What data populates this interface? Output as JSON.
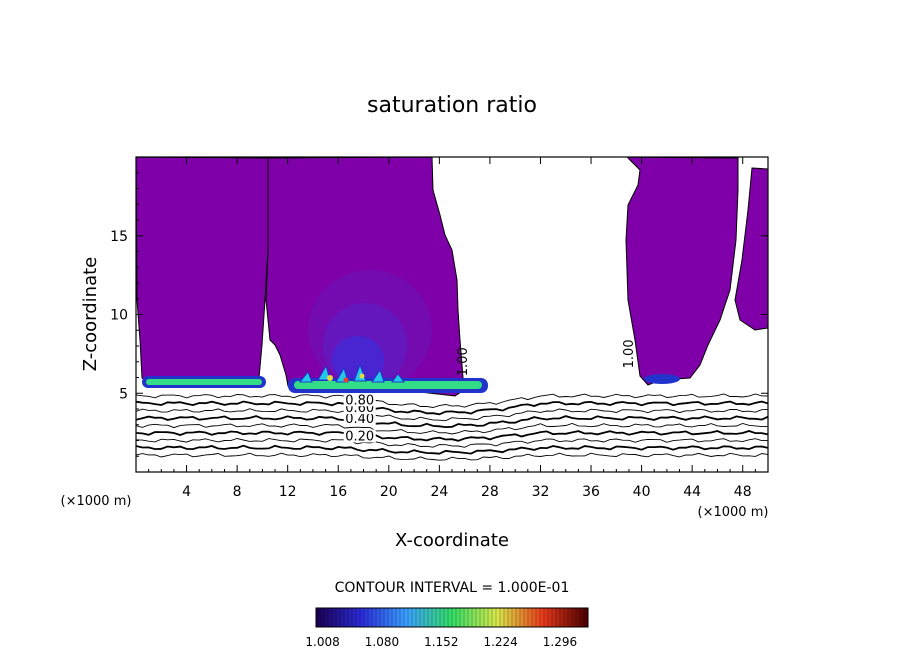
{
  "chart_data": {
    "type": "heatmap",
    "title": "saturation ratio",
    "xlabel": "X-coordinate",
    "ylabel": "Z-coordinate",
    "x_unit": "(×1000 m)",
    "y_unit": "(×1000 m)",
    "xlim": [
      0,
      50
    ],
    "ylim": [
      0,
      20
    ],
    "x_ticks": [
      4,
      8,
      12,
      16,
      20,
      24,
      28,
      32,
      36,
      40,
      44,
      48
    ],
    "y_ticks": [
      5,
      10,
      15
    ],
    "contour_interval_text": "CONTOUR INTERVAL = 1.000E-01",
    "contour_labels": [
      {
        "text": "0.20",
        "x": 17.7,
        "y": 2.0
      },
      {
        "text": "0.40",
        "x": 17.7,
        "y": 3.1
      },
      {
        "text": "0.60",
        "x": 17.7,
        "y": 3.8
      },
      {
        "text": "0.80",
        "x": 17.7,
        "y": 4.3
      },
      {
        "text": "1.00",
        "x": 26.2,
        "y": 7.0
      },
      {
        "text": "1.00",
        "x": 39.3,
        "y": 7.5
      }
    ],
    "colorbar": {
      "min": 1.0,
      "max": 1.33,
      "tick_labels": [
        "1.008",
        "1.080",
        "1.152",
        "1.224",
        "1.296"
      ],
      "colors": [
        "#1a0050",
        "#2b2bd8",
        "#3aa0ff",
        "#33dd66",
        "#d8e84a",
        "#e83a1a",
        "#4a0000"
      ]
    },
    "fill_color": "#7f00a8",
    "fill_label_threshold": "1.00",
    "saturated_regions": [
      {
        "name": "left-anvil",
        "x": [
          0,
          10.5
        ],
        "z": [
          5.2,
          19.8
        ]
      },
      {
        "name": "central-cloud",
        "x": [
          12,
          26.8
        ],
        "z": [
          5.1,
          19.8
        ]
      },
      {
        "name": "right-cloud",
        "x": [
          38,
          48.5
        ],
        "z": [
          5.7,
          19.8
        ]
      }
    ],
    "contour_levels": [
      0.1,
      0.2,
      0.3,
      0.4,
      0.5,
      0.6,
      0.7,
      0.8,
      0.9,
      1.0
    ]
  }
}
